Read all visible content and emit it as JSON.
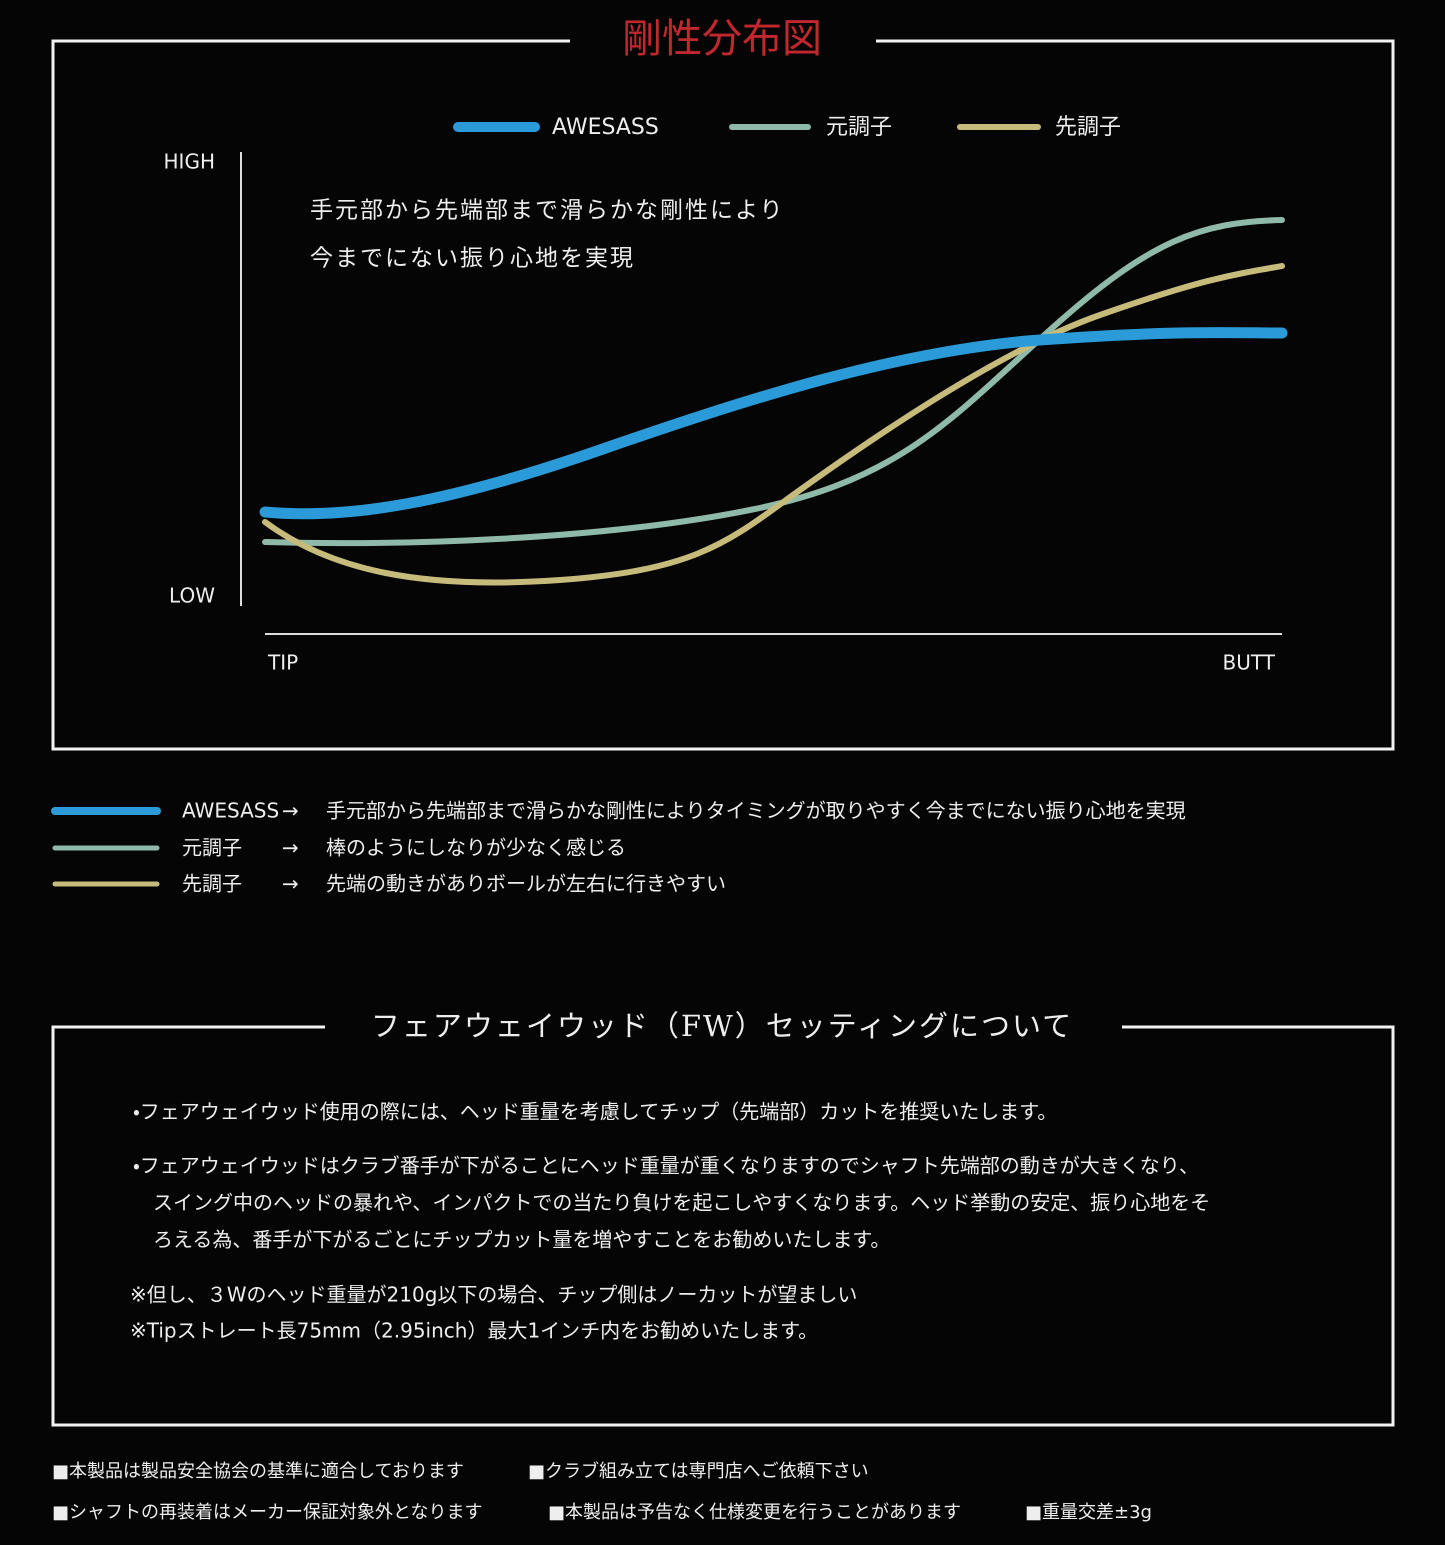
{
  "stiffness": {
    "title": "剛性分布図",
    "legend": [
      "AWESASS",
      "元調子",
      "先調子"
    ],
    "y_high": "HIGH",
    "y_low": "LOW",
    "x_left": "TIP",
    "x_right": "BUTT",
    "annotation": [
      "手元部から先端部まで滑らかな剛性により",
      "今までにない振り心地を実現"
    ],
    "descriptions": [
      {
        "name": "AWESASS",
        "arrow": "→",
        "text": "手元部から先端部まで滑らかな剛性によりタイミングが取りやすく今までにない振り心地を実現"
      },
      {
        "name": "元調子",
        "arrow": "→",
        "text": "棒のようにしなりが少なく感じる"
      },
      {
        "name": "先調子",
        "arrow": "→",
        "text": "先端の動きがありボールが左右に行きやすい"
      }
    ]
  },
  "fw_setting": {
    "title": "フェアウェイウッド（FW）セッティングについて",
    "bullets": [
      [
        "・フェアウェイウッド使用の際には、ヘッド重量を考慮してチップ（先端部）カットを推奨いたします。"
      ],
      [
        "・フェアウェイウッドはクラブ番手が下がることにヘッド重量が重くなりますのでシャフト先端部の動きが大きくなり、",
        "スイング中のヘッドの暴れや、インパクトでの当たり負けを起こしやすくなります。ヘッド挙動の安定、振り心地をそ",
        "ろえる為、番手が下がるごとにチップカット量を増やすことをお勧めいたします。"
      ]
    ],
    "notes": [
      "※但し、３Wのヘッド重量が210g以下の場合、チップ側はノーカットが望ましい",
      "※Tipストレート長75mm（2.95inch）最大1インチ内をお勧めいたします。"
    ]
  },
  "footer": [
    [
      "■本製品は製品安全協会の基準に適合しております",
      "■クラブ組み立ては専門店へご依頼下さい"
    ],
    [
      "■シャフトの再装着はメーカー保証対象外となります",
      "■本製品は予告なく仕様変更を行うことがあります",
      "■重量交差±3g"
    ]
  ]
}
